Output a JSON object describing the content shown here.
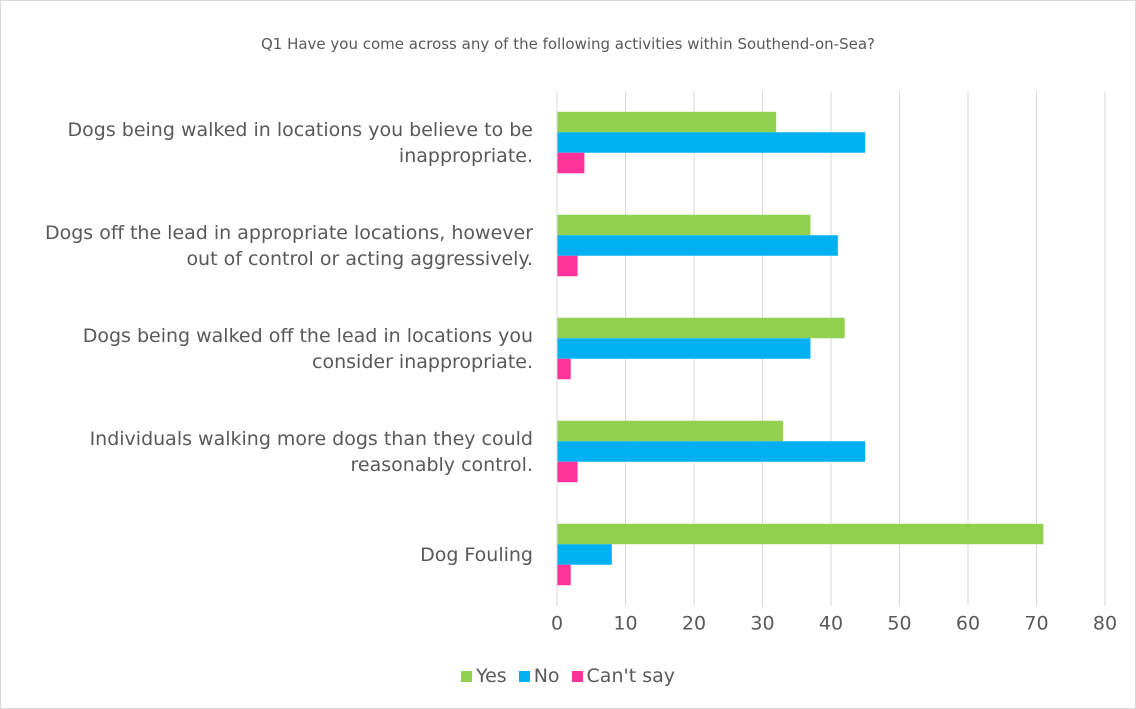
{
  "chart_data": {
    "type": "bar",
    "orientation": "horizontal",
    "title": "Q1 Have you come across any of the following activities within Southend-on-Sea?",
    "categories": [
      "Dogs being walked in locations you believe to be inappropriate.",
      "Dogs off the lead in appropriate locations, however out of control or acting aggressively.",
      "Dogs being walked off the lead in locations you consider inappropriate.",
      "Individuals walking more dogs than they could reasonably control.",
      "Dog Fouling"
    ],
    "series": [
      {
        "name": "Yes",
        "color": "#92d050",
        "values": [
          32,
          37,
          42,
          33,
          71
        ]
      },
      {
        "name": "No",
        "color": "#00b0f0",
        "values": [
          45,
          41,
          37,
          45,
          8
        ]
      },
      {
        "name": "Can't say",
        "color": "#ff3399",
        "values": [
          4,
          3,
          2,
          3,
          2
        ]
      }
    ],
    "xlim": [
      0,
      80
    ],
    "xticks": [
      0,
      10,
      20,
      30,
      40,
      50,
      60,
      70,
      80
    ],
    "grid": true,
    "legend": "bottom"
  }
}
